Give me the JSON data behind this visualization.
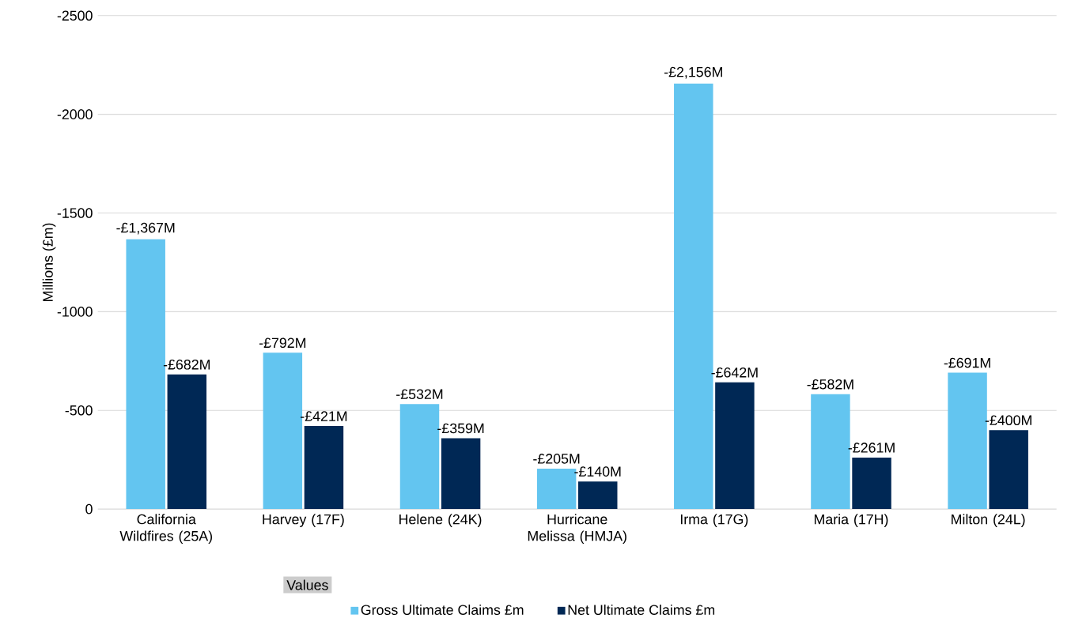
{
  "chart_data": {
    "type": "bar",
    "ylabel": "Millions (£m)",
    "legend_title": "Values",
    "categories": [
      "California Wildfires (25A)",
      "Harvey (17F)",
      "Helene (24K)",
      "Hurricane Melissa (HMJA)",
      "Irma (17G)",
      "Maria (17H)",
      "Milton (24L)"
    ],
    "series": [
      {
        "name": "Gross Ultimate Claims £m",
        "color": "#63c5f0",
        "values": [
          -1367,
          -792,
          -532,
          -205,
          -2156,
          -582,
          -691
        ],
        "value_labels": [
          "-£1,367M",
          "-£792M",
          "-£532M",
          "-£205M",
          "-£2,156M",
          "-£582M",
          "-£691M"
        ]
      },
      {
        "name": "Net Ultimate Claims £m",
        "color": "#002855",
        "values": [
          -682,
          -421,
          -359,
          -140,
          -642,
          -261,
          -400
        ],
        "value_labels": [
          "-£682M",
          "-£421M",
          "-£359M",
          "-£140M",
          "-£642M",
          "-£261M",
          "-£400M"
        ]
      }
    ],
    "ylim": [
      0,
      -2500
    ],
    "yticks": [
      0,
      -500,
      -1000,
      -1500,
      -2000,
      -2500
    ],
    "grid": "y",
    "legend": "bottom"
  }
}
